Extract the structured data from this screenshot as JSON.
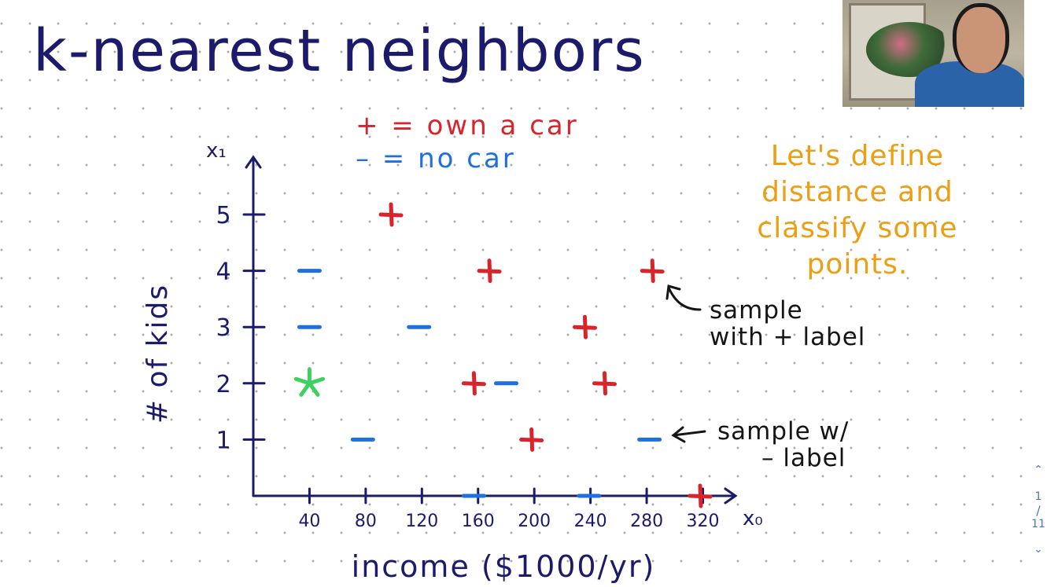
{
  "title": "k-nearest neighbors",
  "legend": {
    "plus_text": "+ = own a car",
    "minus_text": "– = no car"
  },
  "note": "Let's define distance and classify some points.",
  "annotations": {
    "plus_sample": [
      "sample",
      "with + label"
    ],
    "minus_sample": [
      "sample w/",
      "– label"
    ]
  },
  "pager": {
    "current": "1",
    "total": "11",
    "separator": "/"
  },
  "colors": {
    "ink": "#1c1b6b",
    "plus": "#d8242b",
    "minus": "#1f6fe0",
    "query": "#3fd160",
    "note": "#eb9f15"
  },
  "chart_data": {
    "type": "scatter",
    "xlabel": "income ($1000/yr)",
    "ylabel": "# of kids",
    "x_axis_name": "x₀",
    "y_axis_name": "x₁",
    "x_ticks": [
      40,
      80,
      120,
      160,
      200,
      240,
      280,
      320
    ],
    "y_ticks": [
      1,
      2,
      3,
      4,
      5
    ],
    "xlim": [
      0,
      340
    ],
    "ylim": [
      0,
      6
    ],
    "points": [
      {
        "x": 40,
        "y": 4,
        "label": "-"
      },
      {
        "x": 40,
        "y": 3,
        "label": "-"
      },
      {
        "x": 40,
        "y": 2,
        "label": "query"
      },
      {
        "x": 78,
        "y": 1,
        "label": "-"
      },
      {
        "x": 118,
        "y": 3,
        "label": "-"
      },
      {
        "x": 157,
        "y": 0,
        "label": "-"
      },
      {
        "x": 180,
        "y": 2,
        "label": "-"
      },
      {
        "x": 239,
        "y": 0,
        "label": "-"
      },
      {
        "x": 282,
        "y": 1,
        "label": "-"
      },
      {
        "x": 98,
        "y": 5,
        "label": "+"
      },
      {
        "x": 168,
        "y": 4,
        "label": "+"
      },
      {
        "x": 157,
        "y": 2,
        "label": "+"
      },
      {
        "x": 198,
        "y": 1,
        "label": "+"
      },
      {
        "x": 236,
        "y": 3,
        "label": "+"
      },
      {
        "x": 250,
        "y": 2,
        "label": "+"
      },
      {
        "x": 284,
        "y": 4,
        "label": "+"
      },
      {
        "x": 318,
        "y": 0,
        "label": "+"
      }
    ]
  }
}
